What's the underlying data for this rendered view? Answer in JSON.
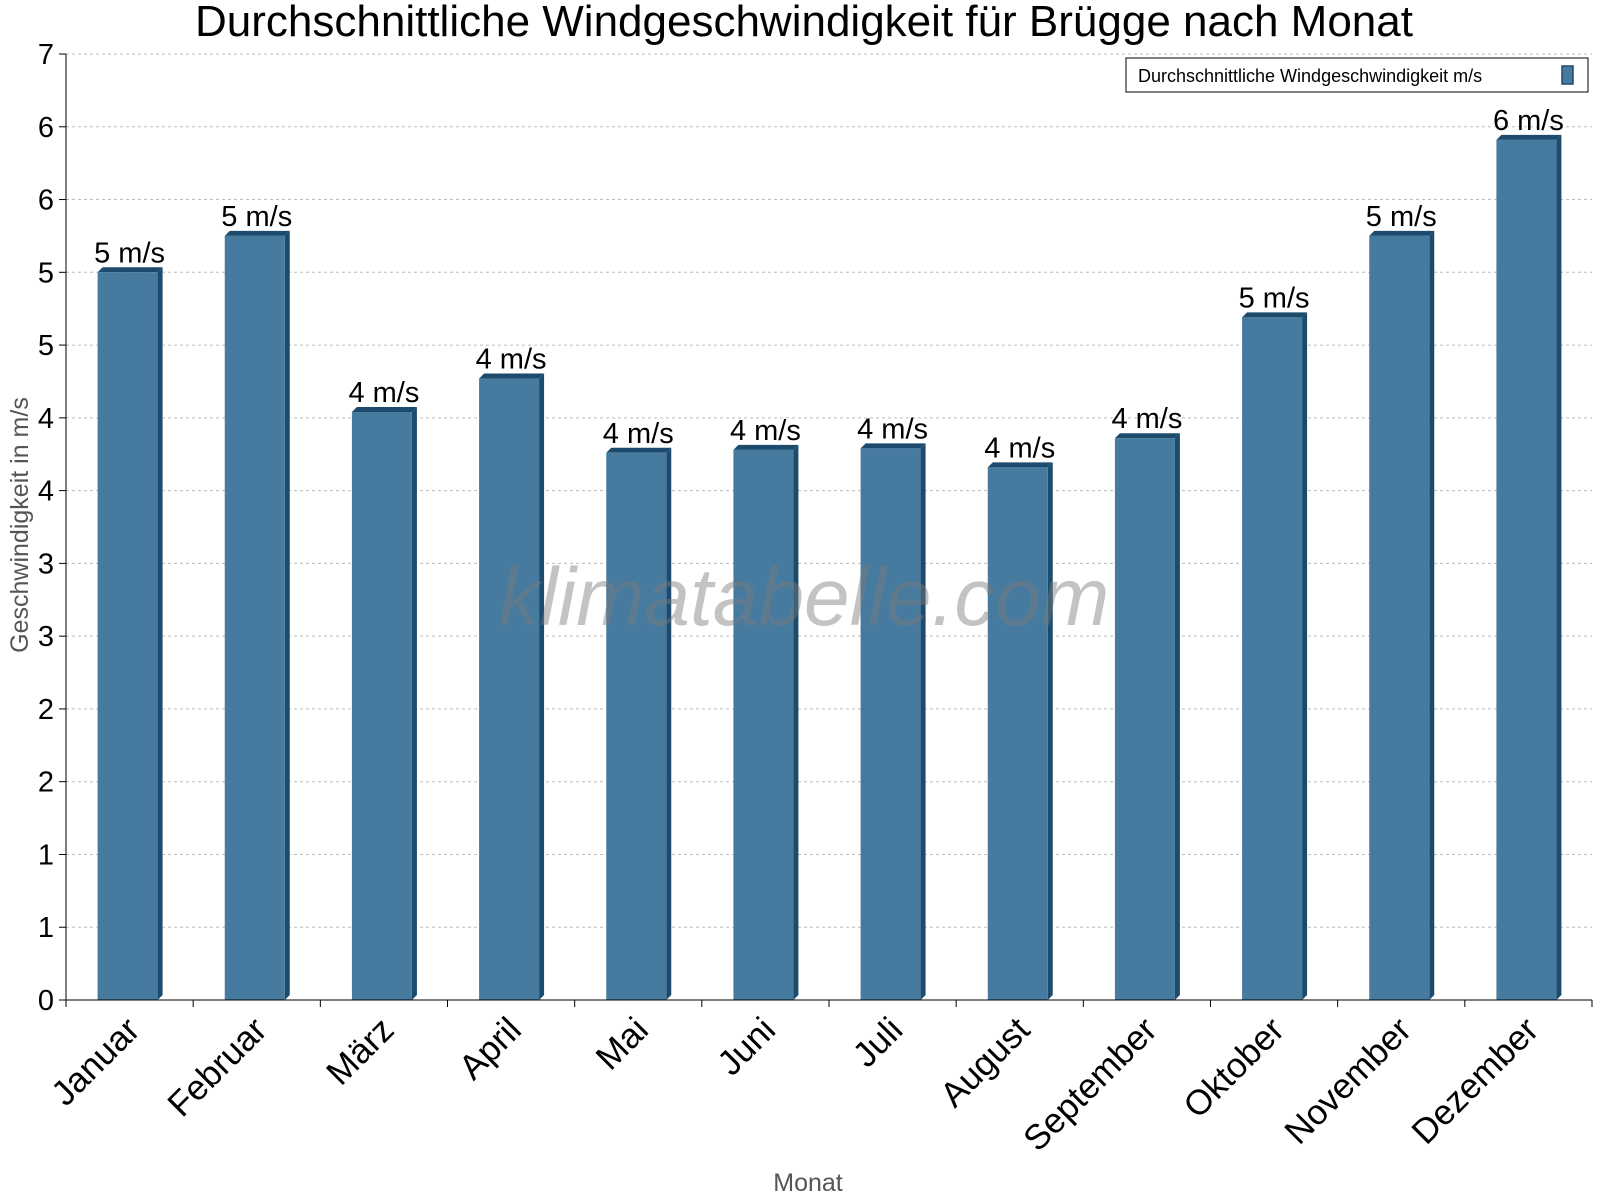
{
  "chart_data": {
    "type": "bar",
    "title": "Durchschnittliche Windgeschwindigkeit für Brügge nach Monat",
    "xlabel": "Monat",
    "ylabel": "Geschwindigkeit in m/s",
    "categories": [
      "Januar",
      "Februar",
      "März",
      "April",
      "Mai",
      "Juni",
      "Juli",
      "August",
      "September",
      "Oktober",
      "November",
      "Dezember"
    ],
    "series": [
      {
        "name": "Durchschnittliche Windgeschwindigkeit m/s",
        "values": [
          5.0,
          5.25,
          4.04,
          4.27,
          3.76,
          3.78,
          3.79,
          3.66,
          3.86,
          4.69,
          5.25,
          5.91
        ],
        "labels": [
          "5 m/s",
          "5 m/s",
          "4 m/s",
          "4 m/s",
          "4 m/s",
          "4 m/s",
          "4 m/s",
          "4 m/s",
          "4 m/s",
          "5 m/s",
          "5 m/s",
          "6 m/s"
        ]
      }
    ],
    "ylim": [
      0,
      6.5
    ],
    "yticks": [
      0,
      0.5,
      1,
      1.5,
      2,
      2.5,
      3,
      3.5,
      4,
      4.5,
      5,
      5.5,
      6,
      6.5
    ],
    "ytick_labels": [
      "0",
      "1",
      "1",
      "2",
      "2",
      "3",
      "3",
      "4",
      "4",
      "5",
      "5",
      "6",
      "6",
      "7"
    ],
    "grid": true,
    "legend_position": "top-right",
    "bar_color": "#467b9f",
    "bar_side_color": "#1c4b6e"
  },
  "watermark": "klimatabelle.com"
}
